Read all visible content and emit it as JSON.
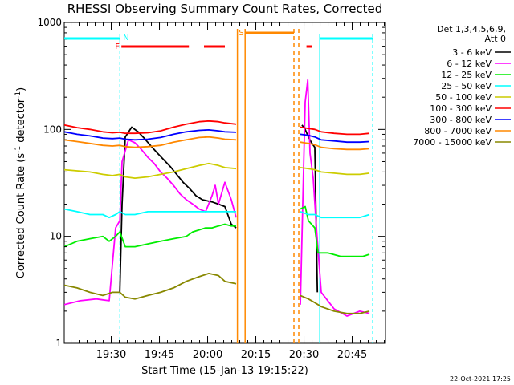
{
  "chart_data": {
    "type": "line",
    "title": "RHESSI Observing Summary Count Rates, Corrected",
    "xlabel": "Start Time (15-Jan-13 19:15:22)",
    "ylabel_main": "Corrected Count Rate (s",
    "ylabel_sup1": "-1",
    "ylabel_mid": " detector",
    "ylabel_sup2": "-1",
    "ylabel_end": ")",
    "y_scale": "log",
    "ylim": [
      1,
      1000
    ],
    "y_ticks": [
      {
        "value": 1,
        "label": "1"
      },
      {
        "value": 10,
        "label": "10"
      },
      {
        "value": 100,
        "label": "100"
      },
      {
        "value": 1000,
        "label": "1000"
      }
    ],
    "xlim_minutes": [
      0,
      100
    ],
    "x_ticks": [
      {
        "minutes": 14.63,
        "label": "19:30"
      },
      {
        "minutes": 29.63,
        "label": "19:45"
      },
      {
        "minutes": 44.63,
        "label": "20:00"
      },
      {
        "minutes": 59.63,
        "label": "20:15"
      },
      {
        "minutes": 74.63,
        "label": "20:30"
      },
      {
        "minutes": 89.63,
        "label": "20:45"
      }
    ],
    "footer_date": "22-Oct-2021 17:25",
    "legend": {
      "header1": "Det 1,3,4,5,6,9,",
      "header2": "Att 0",
      "placement": "right",
      "entries": [
        {
          "label": "3 - 6 keV",
          "color": "#000000"
        },
        {
          "label": "6 - 12 keV",
          "color": "#ff00ff"
        },
        {
          "label": "12 - 25 keV",
          "color": "#00ee00"
        },
        {
          "label": "25 - 50 keV",
          "color": "#00ffff"
        },
        {
          "label": "50 - 100 keV",
          "color": "#cccc00"
        },
        {
          "label": "100 - 300 keV",
          "color": "#ff0000"
        },
        {
          "label": "300 - 800 keV",
          "color": "#0000ff"
        },
        {
          "label": "800 - 7000 keV",
          "color": "#ff8800"
        },
        {
          "label": "7000 - 15000 keV",
          "color": "#888800"
        }
      ]
    },
    "flags": [
      {
        "label": "N",
        "color": "#00ffff",
        "segments": [
          [
            0,
            17.3
          ],
          [
            79.5,
            96
          ]
        ],
        "level": 48
      },
      {
        "label": "F",
        "color": "#ff0000",
        "segments": [
          [
            17.8,
            38.8
          ],
          [
            43.5,
            50.0
          ],
          [
            75.4,
            77.0
          ]
        ],
        "level": 58
      },
      {
        "label": "S",
        "color": "#ff8800",
        "segments": [
          [
            56.3,
            71.5
          ]
        ],
        "level": 41
      }
    ],
    "gaps": [
      {
        "start": 53.9,
        "end": 56.3,
        "color": "#ff8800",
        "style": "solid"
      },
      {
        "start": 71.5,
        "end": 73.0,
        "color": "#ff8800",
        "style": "dashed"
      }
    ],
    "markers": [
      {
        "minutes": 17.3,
        "color": "#00ffff",
        "style": "dashed"
      },
      {
        "minutes": 79.5,
        "color": "#00ffff",
        "style": "solid"
      },
      {
        "minutes": 96.0,
        "color": "#00ffff",
        "style": "dashed"
      }
    ],
    "series": [
      {
        "name": "3 - 6 keV",
        "color": "#000000",
        "points": [
          [
            17.3,
            3
          ],
          [
            18,
            20
          ],
          [
            19,
            85
          ],
          [
            21,
            105
          ],
          [
            23,
            95
          ],
          [
            25,
            82
          ],
          [
            27,
            70
          ],
          [
            29,
            60
          ],
          [
            31,
            52
          ],
          [
            33,
            45
          ],
          [
            35,
            38
          ],
          [
            37,
            32
          ],
          [
            39,
            28
          ],
          [
            41,
            24
          ],
          [
            43,
            22
          ],
          [
            46,
            21
          ],
          [
            48,
            20
          ],
          [
            50,
            19
          ],
          [
            52,
            13
          ],
          [
            53.5,
            12
          ],
          [
            null,
            null
          ],
          [
            74,
            110
          ],
          [
            75,
            100
          ],
          [
            76,
            85
          ],
          [
            77,
            75
          ],
          [
            78,
            68
          ],
          [
            78.8,
            3
          ]
        ]
      },
      {
        "name": "6 - 12 keV",
        "color": "#ff00ff",
        "points": [
          [
            0,
            2.3
          ],
          [
            5,
            2.5
          ],
          [
            10,
            2.6
          ],
          [
            14,
            2.5
          ],
          [
            16,
            12
          ],
          [
            17.3,
            14
          ],
          [
            18,
            50
          ],
          [
            20,
            80
          ],
          [
            22,
            75
          ],
          [
            24,
            65
          ],
          [
            26,
            55
          ],
          [
            28,
            48
          ],
          [
            30,
            40
          ],
          [
            32,
            35
          ],
          [
            34,
            30
          ],
          [
            36,
            25
          ],
          [
            38,
            22
          ],
          [
            40,
            20
          ],
          [
            42,
            18
          ],
          [
            44,
            17
          ],
          [
            46,
            24
          ],
          [
            47,
            30
          ],
          [
            48,
            20
          ],
          [
            50,
            32
          ],
          [
            52,
            22
          ],
          [
            53.5,
            15
          ],
          [
            null,
            null
          ],
          [
            73.5,
            2.3
          ],
          [
            75,
            180
          ],
          [
            75.8,
            290
          ],
          [
            76.5,
            60
          ],
          [
            77.5,
            35
          ],
          [
            78.5,
            12
          ],
          [
            80,
            3
          ],
          [
            84,
            2.1
          ],
          [
            88,
            1.8
          ],
          [
            92,
            2.0
          ],
          [
            95,
            1.9
          ]
        ]
      },
      {
        "name": "12 - 25 keV",
        "color": "#00ee00",
        "points": [
          [
            0,
            8
          ],
          [
            4,
            9
          ],
          [
            8,
            9.5
          ],
          [
            12,
            10
          ],
          [
            14,
            9
          ],
          [
            16,
            10
          ],
          [
            17.3,
            11
          ],
          [
            19,
            8
          ],
          [
            22,
            8
          ],
          [
            26,
            8.5
          ],
          [
            30,
            9
          ],
          [
            34,
            9.5
          ],
          [
            38,
            10
          ],
          [
            40,
            11
          ],
          [
            42,
            11.5
          ],
          [
            44,
            12
          ],
          [
            46,
            12
          ],
          [
            48,
            12.5
          ],
          [
            50,
            13
          ],
          [
            52,
            12.5
          ],
          [
            53.5,
            12.5
          ],
          [
            null,
            null
          ],
          [
            73.5,
            18
          ],
          [
            75,
            19
          ],
          [
            76,
            14
          ],
          [
            78,
            12
          ],
          [
            79,
            7
          ],
          [
            82,
            7
          ],
          [
            86,
            6.5
          ],
          [
            90,
            6.5
          ],
          [
            93,
            6.5
          ],
          [
            95,
            6.8
          ]
        ]
      },
      {
        "name": "25 - 50 keV",
        "color": "#00ffff",
        "points": [
          [
            0,
            18
          ],
          [
            4,
            17
          ],
          [
            8,
            16
          ],
          [
            12,
            16
          ],
          [
            14,
            15
          ],
          [
            16,
            16
          ],
          [
            17.3,
            17
          ],
          [
            19,
            16
          ],
          [
            22,
            16
          ],
          [
            26,
            17
          ],
          [
            30,
            17
          ],
          [
            34,
            17
          ],
          [
            38,
            17
          ],
          [
            42,
            17
          ],
          [
            46,
            17
          ],
          [
            50,
            17
          ],
          [
            53.5,
            17
          ],
          [
            null,
            null
          ],
          [
            73.5,
            17
          ],
          [
            76,
            16
          ],
          [
            78,
            16
          ],
          [
            80,
            15
          ],
          [
            84,
            15
          ],
          [
            88,
            15
          ],
          [
            92,
            15
          ],
          [
            95,
            16
          ]
        ]
      },
      {
        "name": "50 - 100 keV",
        "color": "#cccc00",
        "points": [
          [
            0,
            42
          ],
          [
            4,
            41
          ],
          [
            8,
            40
          ],
          [
            12,
            38
          ],
          [
            15,
            37
          ],
          [
            17.3,
            38
          ],
          [
            19,
            36
          ],
          [
            22,
            35
          ],
          [
            26,
            36
          ],
          [
            30,
            38
          ],
          [
            34,
            40
          ],
          [
            38,
            43
          ],
          [
            42,
            46
          ],
          [
            45,
            48
          ],
          [
            48,
            46
          ],
          [
            50,
            44
          ],
          [
            53.5,
            43
          ],
          [
            null,
            null
          ],
          [
            73.5,
            44
          ],
          [
            76,
            43
          ],
          [
            78,
            42
          ],
          [
            80,
            40
          ],
          [
            84,
            39
          ],
          [
            88,
            38
          ],
          [
            92,
            38
          ],
          [
            95,
            39
          ]
        ]
      },
      {
        "name": "100 - 300 keV",
        "color": "#ff0000",
        "points": [
          [
            0,
            110
          ],
          [
            4,
            104
          ],
          [
            8,
            100
          ],
          [
            12,
            95
          ],
          [
            15,
            93
          ],
          [
            17.3,
            94
          ],
          [
            19,
            92
          ],
          [
            22,
            92
          ],
          [
            26,
            93
          ],
          [
            30,
            97
          ],
          [
            34,
            105
          ],
          [
            38,
            112
          ],
          [
            42,
            118
          ],
          [
            45,
            120
          ],
          [
            48,
            118
          ],
          [
            50,
            115
          ],
          [
            53.5,
            112
          ],
          [
            null,
            null
          ],
          [
            73.5,
            105
          ],
          [
            76,
            102
          ],
          [
            78,
            100
          ],
          [
            80,
            95
          ],
          [
            84,
            92
          ],
          [
            88,
            90
          ],
          [
            92,
            90
          ],
          [
            95,
            92
          ]
        ]
      },
      {
        "name": "300 - 800 keV",
        "color": "#0000ff",
        "points": [
          [
            0,
            95
          ],
          [
            4,
            90
          ],
          [
            8,
            87
          ],
          [
            12,
            83
          ],
          [
            15,
            82
          ],
          [
            17.3,
            83
          ],
          [
            19,
            81
          ],
          [
            22,
            80
          ],
          [
            26,
            81
          ],
          [
            30,
            84
          ],
          [
            34,
            90
          ],
          [
            38,
            95
          ],
          [
            42,
            98
          ],
          [
            45,
            99
          ],
          [
            48,
            97
          ],
          [
            50,
            95
          ],
          [
            53.5,
            94
          ],
          [
            null,
            null
          ],
          [
            73.5,
            90
          ],
          [
            76,
            88
          ],
          [
            78,
            85
          ],
          [
            80,
            80
          ],
          [
            84,
            78
          ],
          [
            88,
            76
          ],
          [
            92,
            76
          ],
          [
            95,
            77
          ]
        ]
      },
      {
        "name": "800 - 7000 keV",
        "color": "#ff8800",
        "points": [
          [
            0,
            80
          ],
          [
            4,
            77
          ],
          [
            8,
            74
          ],
          [
            12,
            71
          ],
          [
            15,
            70
          ],
          [
            17.3,
            71
          ],
          [
            19,
            69
          ],
          [
            22,
            68
          ],
          [
            26,
            69
          ],
          [
            30,
            71
          ],
          [
            34,
            76
          ],
          [
            38,
            80
          ],
          [
            42,
            84
          ],
          [
            45,
            85
          ],
          [
            48,
            83
          ],
          [
            50,
            81
          ],
          [
            53.5,
            80
          ],
          [
            null,
            null
          ],
          [
            73.5,
            76
          ],
          [
            76,
            74
          ],
          [
            78,
            72
          ],
          [
            80,
            68
          ],
          [
            84,
            66
          ],
          [
            88,
            65
          ],
          [
            92,
            65
          ],
          [
            95,
            66
          ]
        ]
      },
      {
        "name": "7000 - 15000 keV",
        "color": "#888800",
        "points": [
          [
            0,
            3.5
          ],
          [
            4,
            3.3
          ],
          [
            8,
            3.0
          ],
          [
            12,
            2.8
          ],
          [
            15,
            3.0
          ],
          [
            17.3,
            3.0
          ],
          [
            19,
            2.7
          ],
          [
            22,
            2.6
          ],
          [
            26,
            2.8
          ],
          [
            30,
            3.0
          ],
          [
            34,
            3.3
          ],
          [
            38,
            3.8
          ],
          [
            42,
            4.2
          ],
          [
            45,
            4.5
          ],
          [
            48,
            4.3
          ],
          [
            50,
            3.8
          ],
          [
            53.5,
            3.6
          ],
          [
            null,
            null
          ],
          [
            73.5,
            2.8
          ],
          [
            76,
            2.6
          ],
          [
            78,
            2.4
          ],
          [
            80,
            2.2
          ],
          [
            84,
            2.0
          ],
          [
            88,
            1.9
          ],
          [
            92,
            1.9
          ],
          [
            95,
            2.0
          ]
        ]
      }
    ]
  }
}
